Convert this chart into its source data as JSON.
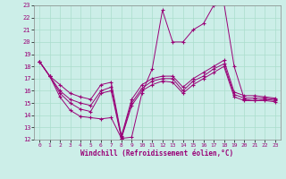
{
  "xlabel": "Windchill (Refroidissement éolien,°C)",
  "background_color": "#cceee8",
  "grid_color": "#aaddcc",
  "line_color": "#990077",
  "xlim": [
    -0.5,
    23.5
  ],
  "ylim": [
    12,
    23
  ],
  "yticks": [
    12,
    13,
    14,
    15,
    16,
    17,
    18,
    19,
    20,
    21,
    22,
    23
  ],
  "xticks": [
    0,
    1,
    2,
    3,
    4,
    5,
    6,
    7,
    8,
    9,
    10,
    11,
    12,
    13,
    14,
    15,
    16,
    17,
    18,
    19,
    20,
    21,
    22,
    23
  ],
  "lines": [
    {
      "x": [
        0,
        1,
        2,
        3,
        4,
        5,
        6,
        7,
        8,
        9,
        10,
        11,
        12,
        13,
        14,
        15,
        16,
        17,
        18,
        19,
        20,
        21,
        22,
        23
      ],
      "y": [
        18.4,
        17.2,
        15.5,
        14.4,
        13.9,
        13.8,
        13.7,
        13.8,
        12.1,
        12.2,
        15.8,
        17.8,
        22.6,
        20.0,
        20.0,
        21.0,
        21.5,
        23.0,
        23.2,
        18.0,
        15.3,
        15.2,
        15.2,
        15.1
      ]
    },
    {
      "x": [
        0,
        1,
        2,
        3,
        4,
        5,
        6,
        7,
        8,
        9,
        10,
        11,
        12,
        13,
        14,
        15,
        16,
        17,
        18,
        19,
        20,
        21,
        22,
        23
      ],
      "y": [
        18.4,
        17.2,
        15.8,
        15.0,
        14.5,
        14.3,
        15.8,
        16.0,
        12.1,
        14.8,
        16.0,
        16.5,
        16.8,
        16.7,
        15.8,
        16.5,
        17.0,
        17.5,
        18.0,
        15.5,
        15.2,
        15.2,
        15.3,
        15.2
      ]
    },
    {
      "x": [
        0,
        1,
        2,
        3,
        4,
        5,
        6,
        7,
        8,
        9,
        10,
        11,
        12,
        13,
        14,
        15,
        16,
        17,
        18,
        19,
        20,
        21,
        22,
        23
      ],
      "y": [
        18.4,
        17.2,
        16.0,
        15.3,
        15.0,
        14.8,
        16.0,
        16.3,
        12.2,
        15.0,
        16.2,
        16.8,
        17.0,
        17.0,
        16.0,
        16.8,
        17.2,
        17.8,
        18.2,
        15.7,
        15.4,
        15.4,
        15.4,
        15.3
      ]
    },
    {
      "x": [
        0,
        1,
        2,
        3,
        4,
        5,
        6,
        7,
        8,
        9,
        10,
        11,
        12,
        13,
        14,
        15,
        16,
        17,
        18,
        19,
        20,
        21,
        22,
        23
      ],
      "y": [
        18.4,
        17.2,
        16.5,
        15.8,
        15.5,
        15.3,
        16.5,
        16.7,
        12.3,
        15.3,
        16.5,
        17.0,
        17.2,
        17.2,
        16.3,
        17.0,
        17.5,
        18.0,
        18.5,
        15.9,
        15.6,
        15.6,
        15.5,
        15.4
      ]
    }
  ]
}
